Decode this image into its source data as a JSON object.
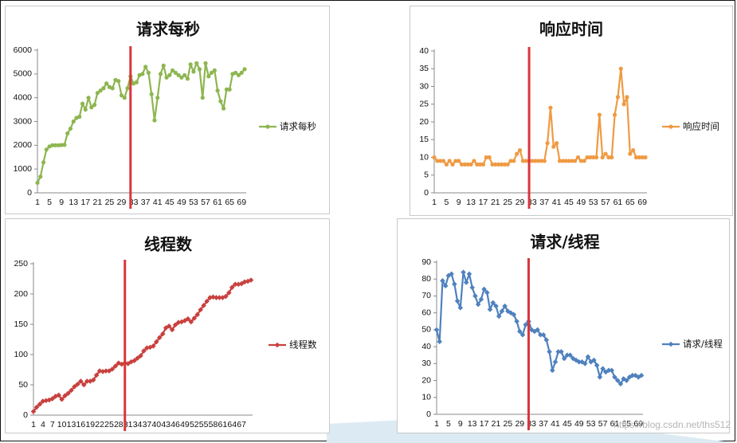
{
  "watermark": "https://blog.csdn.net/ths512",
  "colors": {
    "rps": "#8db650",
    "rt": "#ef9a43",
    "threads": "#c8413e",
    "rpt": "#4f81bd",
    "marker": "#d9363a"
  },
  "chart_data": [
    {
      "type": "line",
      "title": "请求每秒",
      "xlabel": "",
      "ylabel": "",
      "ylim": [
        0,
        6000
      ],
      "yticks": [
        0,
        1000,
        2000,
        3000,
        4000,
        5000,
        6000
      ],
      "x": [
        1,
        2,
        3,
        4,
        5,
        6,
        7,
        8,
        9,
        10,
        11,
        12,
        13,
        14,
        15,
        16,
        17,
        18,
        19,
        20,
        21,
        22,
        23,
        24,
        25,
        26,
        27,
        28,
        29,
        30,
        31,
        32,
        33,
        34,
        35,
        36,
        37,
        38,
        39,
        40,
        41,
        42,
        43,
        44,
        45,
        46,
        47,
        48,
        49,
        50,
        51,
        52,
        53,
        54,
        55,
        56,
        57,
        58,
        59,
        60,
        61,
        62,
        63,
        64,
        65,
        66,
        67,
        68,
        69,
        70
      ],
      "xticks": [
        "1",
        "5",
        "9",
        "13",
        "17",
        "21",
        "25",
        "29",
        "33",
        "37",
        "41",
        "45",
        "49",
        "53",
        "57",
        "61",
        "65",
        "69"
      ],
      "series": [
        {
          "name": "请求每秒",
          "color": "#8db650",
          "values": [
            420,
            680,
            1280,
            1820,
            1950,
            2000,
            2000,
            2000,
            2010,
            2020,
            2500,
            2700,
            3000,
            3150,
            3200,
            3750,
            3500,
            4000,
            3600,
            3700,
            4200,
            4300,
            4400,
            4600,
            4450,
            4400,
            4750,
            4700,
            4100,
            4000,
            4400,
            4900,
            4600,
            4650,
            4950,
            5000,
            5300,
            5050,
            4150,
            3050,
            4000,
            5000,
            5350,
            4850,
            4950,
            5150,
            5050,
            4950,
            4850,
            4950,
            4800,
            5400,
            5100,
            5450,
            5200,
            4000,
            5450,
            4900,
            5050,
            5150,
            4300,
            3850,
            3550,
            4350,
            4350,
            5000,
            5050,
            4950,
            5050,
            5200
          ]
        }
      ],
      "legend": "right",
      "marker_x": 32
    },
    {
      "type": "line",
      "title": "响应时间",
      "xlabel": "",
      "ylabel": "",
      "ylim": [
        0,
        40
      ],
      "yticks": [
        0,
        5,
        10,
        15,
        20,
        25,
        30,
        35,
        40
      ],
      "x": [
        1,
        2,
        3,
        4,
        5,
        6,
        7,
        8,
        9,
        10,
        11,
        12,
        13,
        14,
        15,
        16,
        17,
        18,
        19,
        20,
        21,
        22,
        23,
        24,
        25,
        26,
        27,
        28,
        29,
        30,
        31,
        32,
        33,
        34,
        35,
        36,
        37,
        38,
        39,
        40,
        41,
        42,
        43,
        44,
        45,
        46,
        47,
        48,
        49,
        50,
        51,
        52,
        53,
        54,
        55,
        56,
        57,
        58,
        59,
        60,
        61,
        62,
        63,
        64,
        65,
        66,
        67,
        68,
        69,
        70
      ],
      "xticks": [
        "1",
        "5",
        "9",
        "13",
        "17",
        "21",
        "25",
        "29",
        "33",
        "37",
        "41",
        "45",
        "49",
        "53",
        "57",
        "61",
        "65",
        "69"
      ],
      "series": [
        {
          "name": "响应时间",
          "color": "#ef9a43",
          "values": [
            10,
            9,
            9,
            9,
            8,
            9,
            8,
            9,
            9,
            8,
            8,
            8,
            8,
            9,
            8,
            8,
            8,
            10,
            10,
            8,
            8,
            8,
            8,
            8,
            8,
            9,
            9,
            11,
            12,
            9,
            9,
            9,
            9,
            9,
            9,
            9,
            9,
            14,
            24,
            13,
            14,
            9,
            9,
            9,
            9,
            9,
            9,
            10,
            9,
            9,
            10,
            10,
            10,
            10,
            22,
            10,
            11,
            10,
            10,
            22,
            27,
            35,
            25,
            27,
            11,
            12,
            10,
            10,
            10,
            10
          ]
        }
      ],
      "legend": "right",
      "marker_x": 32
    },
    {
      "type": "line",
      "title": "线程数",
      "xlabel": "",
      "ylabel": "",
      "ylim": [
        0,
        250
      ],
      "yticks": [
        0,
        50,
        100,
        150,
        200,
        250
      ],
      "x": [
        1,
        2,
        3,
        4,
        5,
        6,
        7,
        8,
        9,
        10,
        11,
        12,
        13,
        14,
        15,
        16,
        17,
        18,
        19,
        20,
        21,
        22,
        23,
        24,
        25,
        26,
        27,
        28,
        29,
        30,
        31,
        32,
        33,
        34,
        35,
        36,
        37,
        38,
        39,
        40,
        41,
        42,
        43,
        44,
        45,
        46,
        47,
        48,
        49,
        50,
        51,
        52,
        53,
        54,
        55,
        56,
        57,
        58,
        59,
        60,
        61,
        62,
        63,
        64,
        65,
        66,
        67,
        68,
        69,
        70
      ],
      "xticks": [
        "1",
        "4",
        "7",
        "10",
        "13",
        "16",
        "19",
        "22",
        "25",
        "28",
        "31",
        "34",
        "37",
        "40",
        "43",
        "46",
        "49",
        "52",
        "55",
        "58",
        "61",
        "64",
        "67"
      ],
      "series": [
        {
          "name": "线程数",
          "color": "#c8413e",
          "values": [
            6,
            13,
            18,
            23,
            24,
            25,
            27,
            31,
            33,
            26,
            32,
            36,
            41,
            47,
            51,
            56,
            50,
            56,
            56,
            58,
            66,
            73,
            72,
            73,
            73,
            76,
            81,
            86,
            84,
            86,
            85,
            88,
            90,
            94,
            98,
            106,
            111,
            112,
            114,
            121,
            128,
            134,
            144,
            147,
            141,
            149,
            153,
            154,
            156,
            159,
            154,
            160,
            166,
            174,
            181,
            188,
            194,
            195,
            194,
            194,
            194,
            196,
            202,
            211,
            216,
            216,
            217,
            220,
            221,
            223
          ]
        }
      ],
      "legend": "right",
      "marker_x": 30
    },
    {
      "type": "line",
      "title": "请求/线程",
      "xlabel": "",
      "ylabel": "",
      "ylim": [
        0,
        90
      ],
      "yticks": [
        0,
        10,
        20,
        30,
        40,
        50,
        60,
        70,
        80,
        90
      ],
      "x": [
        1,
        2,
        3,
        4,
        5,
        6,
        7,
        8,
        9,
        10,
        11,
        12,
        13,
        14,
        15,
        16,
        17,
        18,
        19,
        20,
        21,
        22,
        23,
        24,
        25,
        26,
        27,
        28,
        29,
        30,
        31,
        32,
        33,
        34,
        35,
        36,
        37,
        38,
        39,
        40,
        41,
        42,
        43,
        44,
        45,
        46,
        47,
        48,
        49,
        50,
        51,
        52,
        53,
        54,
        55,
        56,
        57,
        58,
        59,
        60,
        61,
        62,
        63,
        64,
        65,
        66,
        67,
        68,
        69,
        70
      ],
      "xticks": [
        "1",
        "5",
        "9",
        "13",
        "17",
        "21",
        "25",
        "29",
        "33",
        "37",
        "41",
        "45",
        "49",
        "53",
        "57",
        "61",
        "65",
        "69"
      ],
      "series": [
        {
          "name": "请求/线程",
          "color": "#4f81bd",
          "values": [
            50,
            43,
            79,
            76,
            82,
            83,
            77,
            67,
            63,
            84,
            78,
            83,
            75,
            70,
            65,
            68,
            74,
            72,
            62,
            66,
            64,
            58,
            61,
            64,
            61,
            60,
            59,
            55,
            49,
            47,
            53,
            55,
            50,
            49,
            50,
            47,
            47,
            44,
            37,
            26,
            31,
            37,
            37,
            33,
            35,
            35,
            33,
            32,
            31,
            31,
            30,
            34,
            31,
            32,
            29,
            22,
            27,
            25,
            26,
            26,
            22,
            20,
            18,
            21,
            20,
            22,
            23,
            23,
            22,
            23
          ]
        }
      ],
      "legend": "right",
      "marker_x": 32
    }
  ]
}
